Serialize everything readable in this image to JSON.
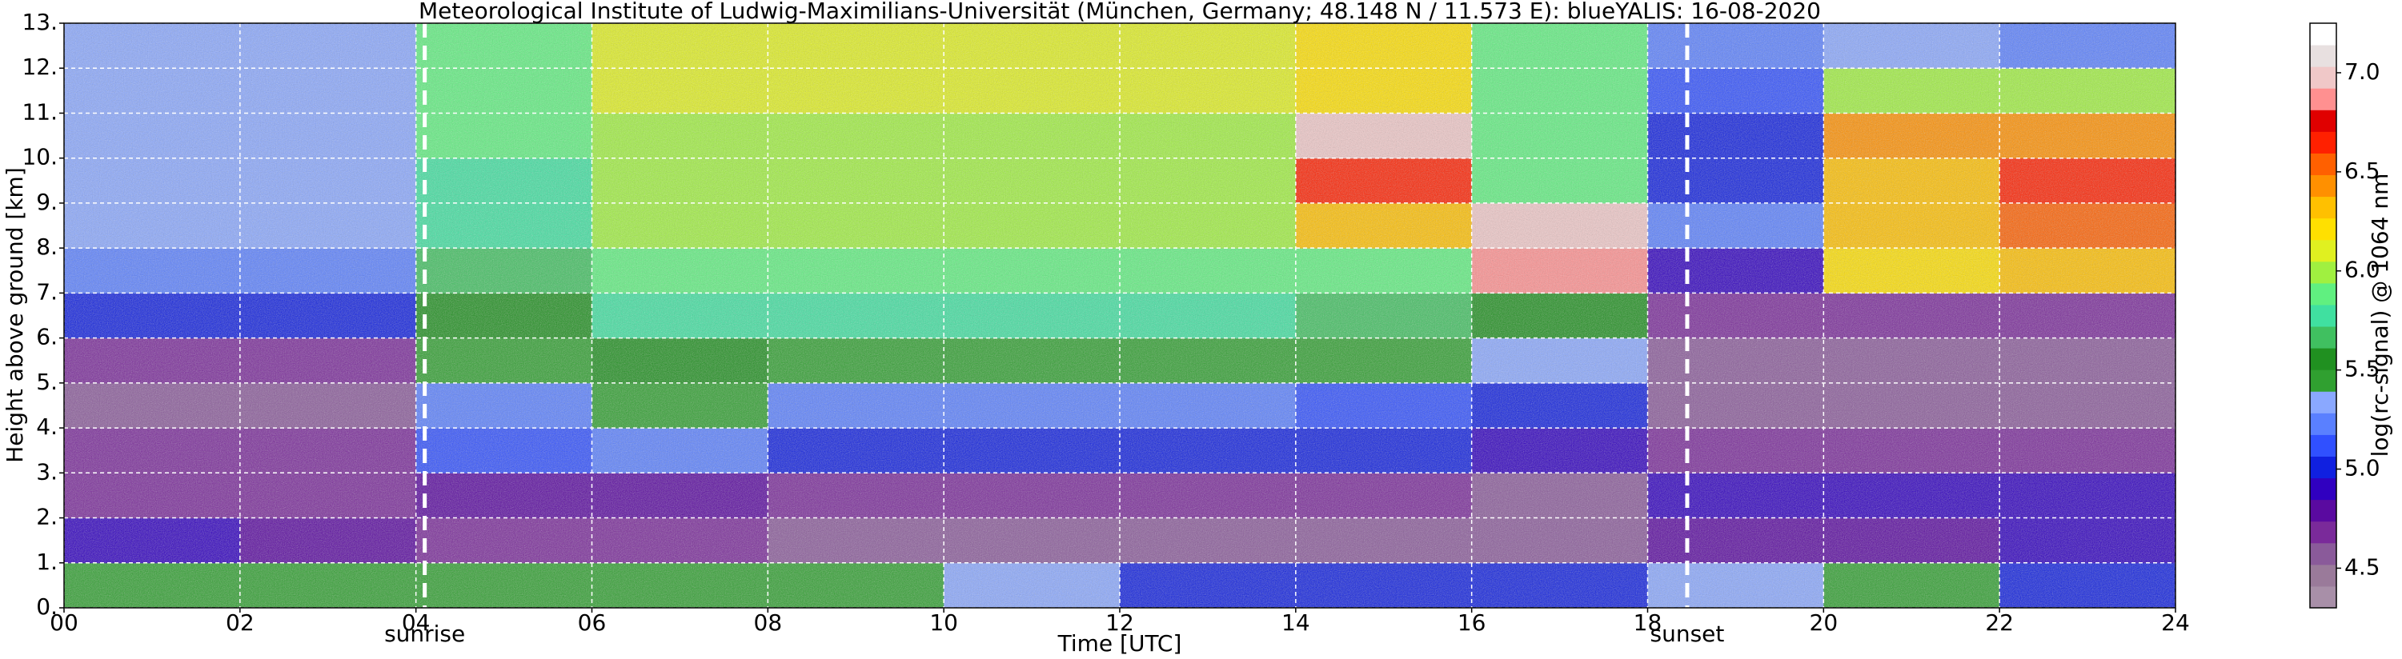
{
  "chart_data": {
    "type": "heatmap",
    "title": "Meteorological Institute of Ludwig-Maximilians-Universität (München, Germany; 48.148 N / 11.573 E):    blueYALIS: 16-08-2020",
    "xlabel": "Time [UTC]",
    "ylabel": "Height above ground [km]",
    "colorbar_label": "log(rc-signal) @ 1064 nm",
    "xbins": [
      0,
      2,
      4,
      6,
      8,
      10,
      12,
      14,
      16,
      18,
      20,
      22,
      24
    ],
    "ybins": [
      0,
      1,
      2,
      3,
      4,
      5,
      6,
      7,
      8,
      9,
      10,
      11,
      12,
      13
    ],
    "z": [
      [
        5.5,
        5.5,
        5.4,
        5.4,
        5.5,
        5.3,
        5.0,
        5.0,
        5.0,
        5.3,
        5.4,
        5.0
      ],
      [
        4.9,
        4.8,
        4.7,
        4.7,
        4.6,
        4.6,
        4.6,
        4.6,
        4.6,
        4.8,
        4.8,
        4.9
      ],
      [
        4.7,
        4.7,
        4.8,
        4.8,
        4.7,
        4.7,
        4.7,
        4.7,
        4.6,
        4.9,
        4.9,
        4.9
      ],
      [
        4.7,
        4.7,
        5.1,
        5.2,
        5.0,
        5.0,
        5.0,
        5.0,
        4.9,
        4.7,
        4.7,
        4.7
      ],
      [
        4.6,
        4.6,
        5.2,
        5.4,
        5.2,
        5.2,
        5.2,
        5.1,
        5.0,
        4.6,
        4.6,
        4.6
      ],
      [
        4.7,
        4.7,
        5.4,
        5.6,
        5.5,
        5.5,
        5.5,
        5.4,
        5.3,
        4.6,
        4.6,
        4.6
      ],
      [
        5.0,
        5.0,
        5.6,
        5.8,
        5.8,
        5.8,
        5.8,
        5.7,
        5.6,
        4.7,
        4.7,
        4.7
      ],
      [
        5.2,
        5.2,
        5.7,
        5.9,
        5.9,
        5.9,
        5.9,
        5.9,
        6.9,
        4.9,
        6.2,
        6.3
      ],
      [
        5.3,
        5.3,
        5.8,
        6.0,
        6.0,
        6.0,
        6.0,
        6.3,
        7.0,
        5.2,
        6.3,
        6.5
      ],
      [
        5.3,
        5.3,
        5.8,
        6.0,
        6.0,
        6.0,
        6.0,
        6.6,
        5.9,
        5.0,
        6.3,
        6.6
      ],
      [
        5.3,
        5.3,
        5.9,
        6.0,
        6.0,
        6.0,
        6.0,
        7.0,
        5.9,
        5.0,
        6.4,
        6.4
      ],
      [
        5.3,
        5.3,
        5.9,
        6.1,
        6.1,
        6.1,
        6.1,
        6.2,
        5.9,
        5.1,
        6.0,
        6.0
      ],
      [
        5.3,
        5.3,
        5.9,
        6.1,
        6.1,
        6.1,
        6.1,
        6.2,
        5.9,
        5.2,
        5.3,
        5.2
      ]
    ],
    "xlim": [
      0,
      24
    ],
    "ylim": [
      0,
      13
    ],
    "xticks": [
      {
        "value": 0,
        "label": "00"
      },
      {
        "value": 2,
        "label": "02"
      },
      {
        "value": 4,
        "label": "04"
      },
      {
        "value": 6,
        "label": "06"
      },
      {
        "value": 8,
        "label": "08"
      },
      {
        "value": 10,
        "label": "10"
      },
      {
        "value": 12,
        "label": "12"
      },
      {
        "value": 14,
        "label": "14"
      },
      {
        "value": 16,
        "label": "16"
      },
      {
        "value": 18,
        "label": "18"
      },
      {
        "value": 20,
        "label": "20"
      },
      {
        "value": 22,
        "label": "22"
      },
      {
        "value": 24,
        "label": "24"
      }
    ],
    "yticks": [
      {
        "value": 0,
        "label": "0."
      },
      {
        "value": 1,
        "label": "1."
      },
      {
        "value": 2,
        "label": "2."
      },
      {
        "value": 3,
        "label": "3."
      },
      {
        "value": 4,
        "label": "4."
      },
      {
        "value": 5,
        "label": "5."
      },
      {
        "value": 6,
        "label": "6."
      },
      {
        "value": 7,
        "label": "7."
      },
      {
        "value": 8,
        "label": "8."
      },
      {
        "value": 9,
        "label": "9."
      },
      {
        "value": 10,
        "label": "10."
      },
      {
        "value": 11,
        "label": "11."
      },
      {
        "value": 12,
        "label": "12."
      },
      {
        "value": 13,
        "label": "13."
      }
    ],
    "clim": [
      4.3,
      7.25
    ],
    "cticks": [
      4.5,
      {
        "value": 5,
        "label": "5.0"
      },
      5.5,
      {
        "value": 6,
        "label": "6.0"
      },
      6.5,
      {
        "value": 7,
        "label": "7.0"
      }
    ],
    "colormap": [
      "#a88fa8",
      "#9a7a9a",
      "#8a5a9a",
      "#7a2a9a",
      "#5a0aa0",
      "#3000c0",
      "#1020e0",
      "#3050ff",
      "#5a80ff",
      "#8aa8ff",
      "#30a030",
      "#209020",
      "#40c060",
      "#40e0a0",
      "#60f080",
      "#a0f040",
      "#e0f020",
      "#ffe000",
      "#ffc000",
      "#ff9000",
      "#ff6000",
      "#ff2000",
      "#e00000",
      "#ff9090",
      "#f0c8c8",
      "#e8e0e0",
      "#ffffff"
    ],
    "grid": true,
    "annotations": [
      {
        "x": 4.1,
        "label": "sunrise"
      },
      {
        "x": 18.45,
        "label": "sunset"
      }
    ]
  }
}
